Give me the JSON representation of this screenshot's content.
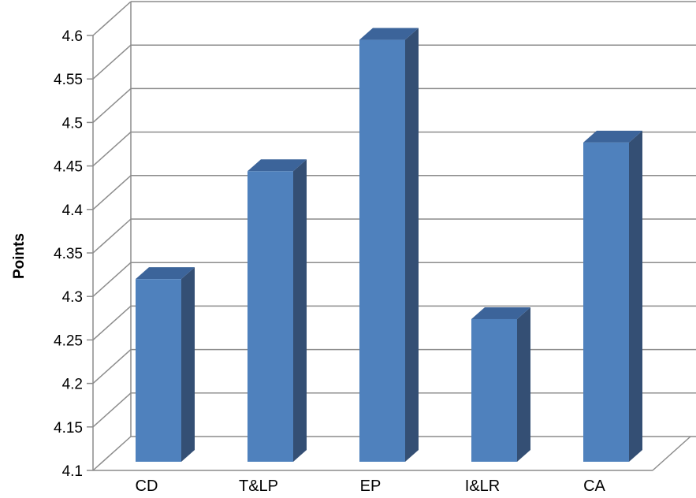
{
  "chart_data": {
    "type": "bar",
    "title": "",
    "xlabel": "",
    "ylabel": "Points",
    "categories": [
      "CD",
      "T&LP",
      "EP",
      "I&LR",
      "CA"
    ],
    "values": [
      4.31,
      4.434,
      4.585,
      4.264,
      4.467
    ],
    "ylim": [
      4.1,
      4.6
    ],
    "yticks": [
      "4.1",
      "4.15",
      "4.2",
      "4.25",
      "4.3",
      "4.35",
      "4.4",
      "4.45",
      "4.5",
      "4.55",
      "4.6"
    ],
    "grid": true,
    "colors": {
      "front": "#4f81bd",
      "side": "#344f74",
      "top": "#3c649a",
      "grid": "#8c8c8c"
    },
    "style": "3d-column"
  }
}
